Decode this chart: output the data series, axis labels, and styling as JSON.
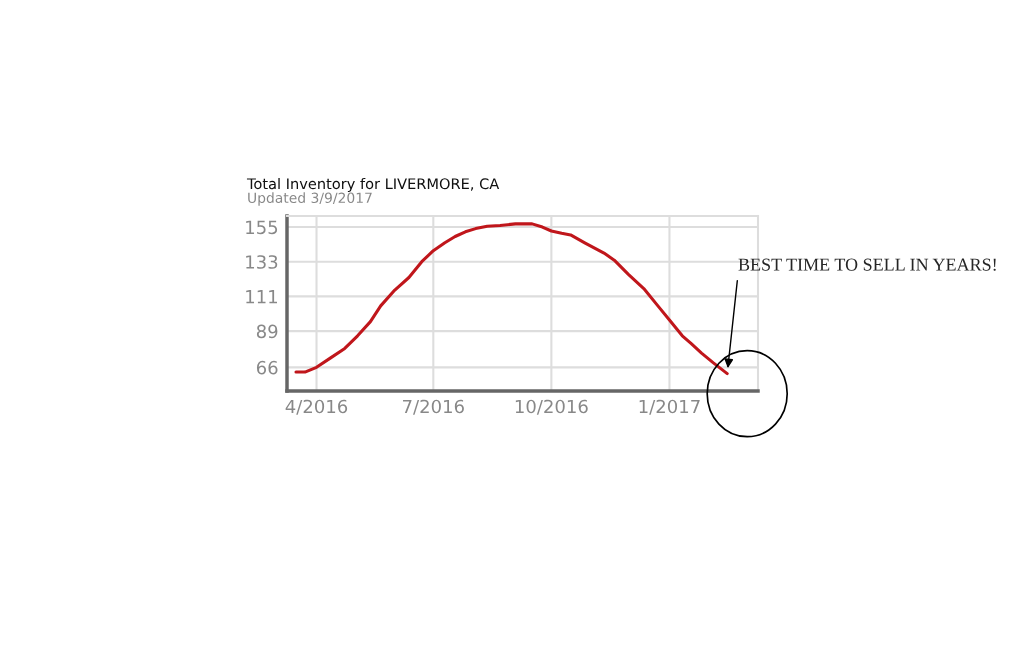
{
  "chart_data": {
    "type": "line",
    "title": "Total Inventory for LIVERMORE, CA",
    "subtitle": "Updated 3/9/2017",
    "x": [
      "2016-03-16",
      "2016-03-23",
      "2016-04-01",
      "2016-04-12",
      "2016-04-23",
      "2016-05-03",
      "2016-05-13",
      "2016-05-21",
      "2016-06-01",
      "2016-06-12",
      "2016-06-22",
      "2016-07-01",
      "2016-07-10",
      "2016-07-18",
      "2016-07-26",
      "2016-08-03",
      "2016-08-12",
      "2016-08-22",
      "2016-09-03",
      "2016-09-16",
      "2016-09-24",
      "2016-10-01",
      "2016-10-09",
      "2016-10-16",
      "2016-10-27",
      "2016-11-11",
      "2016-11-19",
      "2016-11-30",
      "2016-12-12",
      "2016-12-23",
      "2017-01-01",
      "2017-01-11",
      "2017-01-18",
      "2017-01-26",
      "2017-02-04",
      "2017-02-15"
    ],
    "series": [
      {
        "color": "#c0161b",
        "values": [
          63,
          63,
          66,
          72,
          78,
          86,
          95,
          105,
          115,
          123,
          133,
          140,
          145,
          149,
          152,
          154,
          155.5,
          156,
          157,
          157,
          155,
          152.5,
          151,
          150,
          145,
          138.5,
          134,
          125,
          116,
          105,
          96,
          86,
          81,
          75,
          69,
          62
        ]
      }
    ],
    "xlim": [
      "2016-03-09",
      "2017-03-11"
    ],
    "xticks": [
      {
        "value": "2016-04-01",
        "label": "4/2016"
      },
      {
        "value": "2016-07-01",
        "label": "7/2016"
      },
      {
        "value": "2016-10-01",
        "label": "10/2016"
      },
      {
        "value": "2017-01-01",
        "label": "1/2017"
      }
    ],
    "ylim": [
      51,
      162
    ],
    "yticks": [
      66,
      89,
      111,
      133,
      155
    ],
    "grid": true,
    "legend": false,
    "marker": "none",
    "line_style": "solid",
    "annotations": [
      {
        "text": "BEST TIME TO SELL IN YEARS!",
        "x": "2017-02-15",
        "y": 62
      }
    ]
  }
}
